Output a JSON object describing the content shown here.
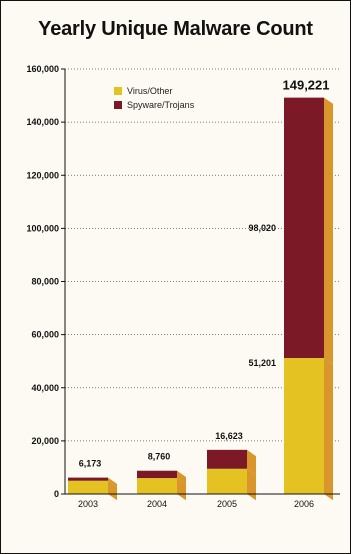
{
  "chart_data": {
    "type": "bar",
    "stacked": true,
    "title": "Yearly Unique Malware Count",
    "categories": [
      "2003",
      "2004",
      "2005",
      "2006"
    ],
    "series": [
      {
        "name": "Virus/Other",
        "values": [
          5000,
          6000,
          9500,
          51201
        ]
      },
      {
        "name": "Spyware/Trojans",
        "values": [
          1173,
          2760,
          7123,
          98020
        ]
      }
    ],
    "totals": [
      "6,173",
      "8,760",
      "16,623",
      "149,221"
    ],
    "segment_labels": {
      "2006": {
        "Virus/Other": "51,201",
        "Spyware/Trojans": "98,020"
      }
    },
    "yticks": [
      0,
      20000,
      40000,
      60000,
      80000,
      100000,
      120000,
      140000,
      160000
    ],
    "ytick_labels": [
      "0",
      "20,000",
      "40,000",
      "60,000",
      "80,000",
      "100,000",
      "120,000",
      "140,000",
      "160,000"
    ],
    "ylim": [
      0,
      160000
    ],
    "grid": "horizontal-dotted",
    "legend_position": "top-left",
    "colors": {
      "Virus/Other": "#e3c221",
      "Spyware/Trojans": "#7b1a26",
      "side": "#d9962a",
      "highlight_total": "#7b1a26"
    }
  }
}
